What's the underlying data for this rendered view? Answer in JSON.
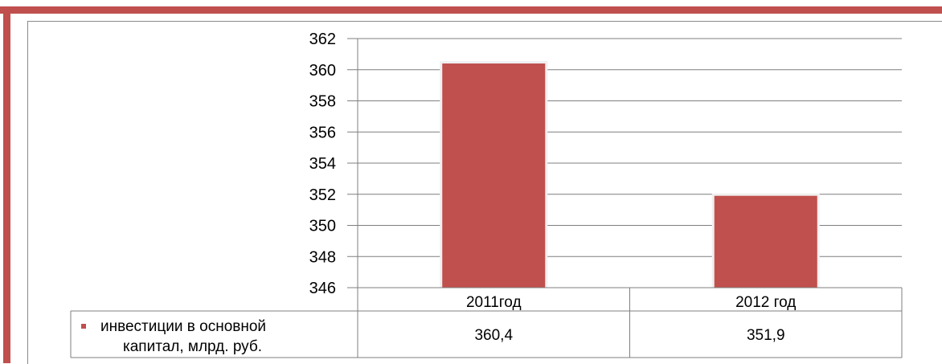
{
  "chart_data": {
    "type": "bar",
    "categories": [
      "2011год",
      "2012 год"
    ],
    "series": [
      {
        "name": "инвестиции в основной капитал, млрд. руб.",
        "values": [
          360.4,
          351.9
        ],
        "value_labels": [
          "360,4",
          "351,9"
        ]
      }
    ],
    "ylim": [
      346,
      362
    ],
    "yticks": [
      362,
      360,
      358,
      356,
      354,
      352,
      350,
      348,
      346
    ],
    "grid": true,
    "legend": "data-table",
    "colors": {
      "bar": "#c0504d",
      "grid": "#7f7f7f",
      "frame": "#c0504d"
    }
  },
  "table": {
    "series_label_line1": "инвестиции в основной",
    "series_label_line2": "капитал, млрд. руб."
  }
}
